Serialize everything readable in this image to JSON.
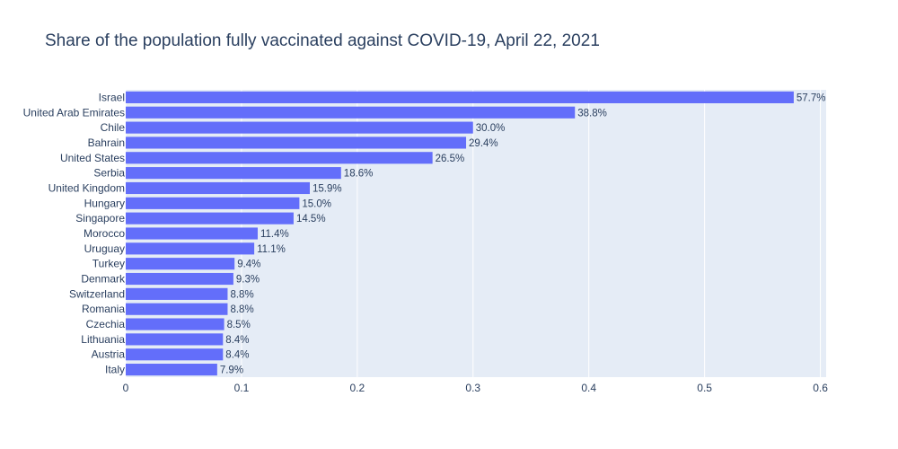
{
  "chart_data": {
    "type": "bar",
    "orientation": "horizontal",
    "title": "Share of the population fully vaccinated against COVID-19, April 22, 2021",
    "xlabel": "",
    "ylabel": "",
    "xlim": [
      0,
      0.605
    ],
    "x_ticks": [
      0,
      0.1,
      0.2,
      0.3,
      0.4,
      0.5,
      0.6
    ],
    "x_tick_labels": [
      "0",
      "0.1",
      "0.2",
      "0.3",
      "0.4",
      "0.5",
      "0.6"
    ],
    "grid": true,
    "colors": {
      "bar": "#636efa",
      "plot_bg": "#e5ecf6",
      "grid": "#ffffff",
      "text": "#2a3f5f"
    },
    "categories": [
      "Israel",
      "United Arab Emirates",
      "Chile",
      "Bahrain",
      "United States",
      "Serbia",
      "United Kingdom",
      "Hungary",
      "Singapore",
      "Morocco",
      "Uruguay",
      "Turkey",
      "Denmark",
      "Switzerland",
      "Romania",
      "Czechia",
      "Lithuania",
      "Austria",
      "Italy"
    ],
    "values": [
      0.577,
      0.388,
      0.3,
      0.294,
      0.265,
      0.186,
      0.159,
      0.15,
      0.145,
      0.114,
      0.111,
      0.094,
      0.093,
      0.088,
      0.088,
      0.085,
      0.084,
      0.084,
      0.079
    ],
    "data_labels": [
      "57.7%",
      "38.8%",
      "30.0%",
      "29.4%",
      "26.5%",
      "18.6%",
      "15.9%",
      "15.0%",
      "14.5%",
      "11.4%",
      "11.1%",
      "9.4%",
      "9.3%",
      "8.8%",
      "8.8%",
      "8.5%",
      "8.4%",
      "8.4%",
      "7.9%"
    ]
  }
}
